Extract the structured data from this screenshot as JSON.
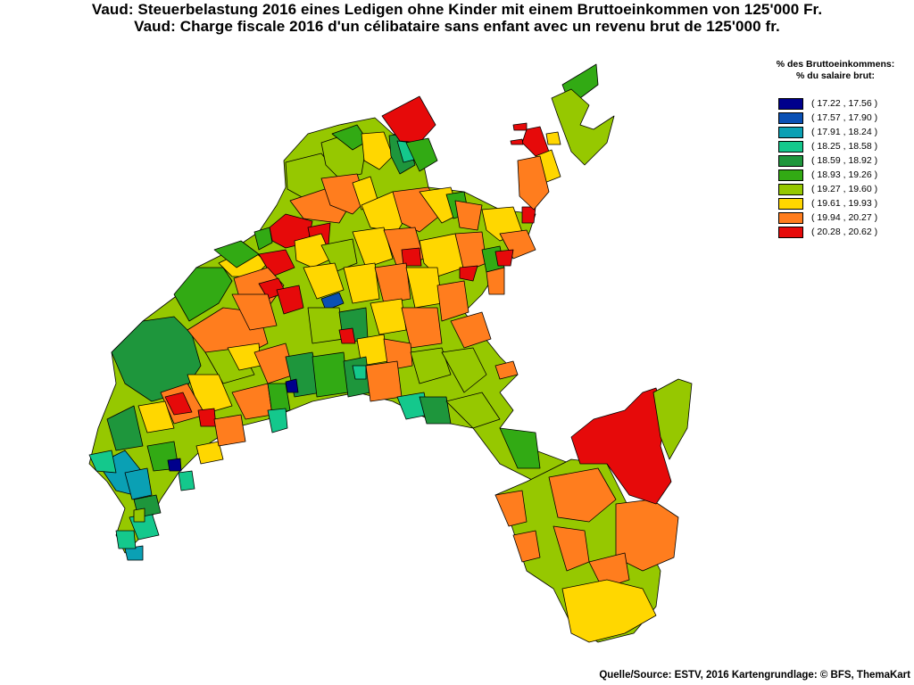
{
  "title_de": "Vaud: Steuerbelastung 2016 eines Ledigen ohne Kinder mit einem Bruttoeinkommen von 125'000 Fr.",
  "title_fr": "Vaud: Charge fiscale 2016 d'un célibataire sans enfant avec un revenu brut de 125'000 fr.",
  "legend": {
    "heading_de": "% des Bruttoeinkommens:",
    "heading_fr": "% du salaire brut:",
    "classes": [
      {
        "label": "( 17.22 , 17.56 )",
        "color": "#00008c"
      },
      {
        "label": "( 17.57 , 17.90 )",
        "color": "#0a50b4"
      },
      {
        "label": "( 17.91 , 18.24 )",
        "color": "#0aa0b4"
      },
      {
        "label": "( 18.25 , 18.58 )",
        "color": "#14c88c"
      },
      {
        "label": "( 18.59 , 18.92 )",
        "color": "#1e963c"
      },
      {
        "label": "( 18.93 , 19.26 )",
        "color": "#32aa14"
      },
      {
        "label": "( 19.27 , 19.60 )",
        "color": "#96c800"
      },
      {
        "label": "( 19.61 , 19.93 )",
        "color": "#ffd700"
      },
      {
        "label": "( 19.94 , 20.27 )",
        "color": "#ff7d1e"
      },
      {
        "label": "( 20.28 , 20.62 )",
        "color": "#e60a0a"
      }
    ]
  },
  "source": "Quelle/Source: ESTV, 2016 Kartengrundlage: © BFS, ThemaKart"
}
